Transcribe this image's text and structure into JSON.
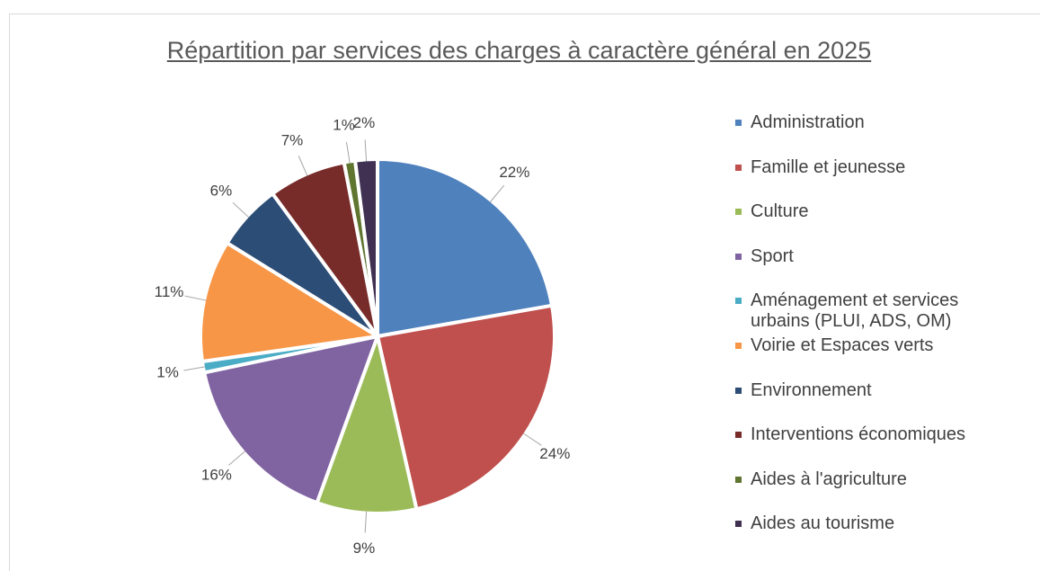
{
  "chart_data": {
    "type": "pie",
    "title": "Répartition par services des charges à caractère général en 2025",
    "categories": [
      "Administration",
      "Famille et jeunesse",
      "Culture",
      "Sport",
      "Aménagement et services urbains (PLUI, ADS, OM)",
      "Voirie et Espaces verts",
      "Environnement",
      "Interventions économiques",
      "Aides à l'agriculture",
      "Aides au tourisme"
    ],
    "values": [
      22,
      24,
      9,
      16,
      1,
      11,
      6,
      7,
      1,
      2
    ],
    "value_labels": [
      "22%",
      "24%",
      "9%",
      "16%",
      "1%",
      "11%",
      "6%",
      "7%",
      "1%",
      "2%"
    ],
    "colors": [
      "#4f81bd",
      "#c0504d",
      "#9bbb59",
      "#8064a2",
      "#4bacc6",
      "#f79646",
      "#2c4d75",
      "#772c2a",
      "#5f7530",
      "#403152"
    ],
    "legend": "right"
  }
}
